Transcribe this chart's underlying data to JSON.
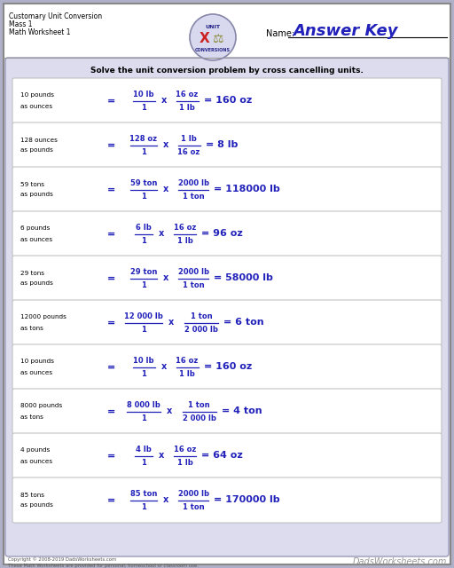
{
  "title_lines": [
    "Customary Unit Conversion",
    "Mass 1",
    "Math Worksheet 1"
  ],
  "answer_key_text": "Answer Key",
  "name_label": "Name:",
  "instruction": "Solve the unit conversion problem by cross cancelling units.",
  "blue_color": "#2222bb",
  "page_bg": "#b0b0c8",
  "white": "#ffffff",
  "box_border": "#aaaaaa",
  "outer_panel_bg": "#dcdcee",
  "outer_panel_border": "#9999bb",
  "problems": [
    {
      "line1": "10 pounds",
      "line2": "as ounces",
      "num1": "10 lb",
      "den1": "1",
      "num2": "16 oz",
      "den2": "1 lb",
      "result": "= 160 oz"
    },
    {
      "line1": "128 ounces",
      "line2": "as pounds",
      "num1": "128 oz",
      "den1": "1",
      "num2": "1 lb",
      "den2": "16 oz",
      "result": "= 8 lb"
    },
    {
      "line1": "59 tons",
      "line2": "as pounds",
      "num1": "59 ton",
      "den1": "1",
      "num2": "2000 lb",
      "den2": "1 ton",
      "result": "= 118000 lb"
    },
    {
      "line1": "6 pounds",
      "line2": "as ounces",
      "num1": "6 lb",
      "den1": "1",
      "num2": "16 oz",
      "den2": "1 lb",
      "result": "= 96 oz"
    },
    {
      "line1": "29 tons",
      "line2": "as pounds",
      "num1": "29 ton",
      "den1": "1",
      "num2": "2000 lb",
      "den2": "1 ton",
      "result": "= 58000 lb"
    },
    {
      "line1": "12000 pounds",
      "line2": "as tons",
      "num1": "12 000 lb",
      "den1": "1",
      "num2": "1 ton",
      "den2": "2 000 lb",
      "result": "= 6 ton"
    },
    {
      "line1": "10 pounds",
      "line2": "as ounces",
      "num1": "10 lb",
      "den1": "1",
      "num2": "16 oz",
      "den2": "1 lb",
      "result": "= 160 oz"
    },
    {
      "line1": "8000 pounds",
      "line2": "as tons",
      "num1": "8 000 lb",
      "den1": "1",
      "num2": "1 ton",
      "den2": "2 000 lb",
      "result": "= 4 ton"
    },
    {
      "line1": "4 pounds",
      "line2": "as ounces",
      "num1": "4 lb",
      "den1": "1",
      "num2": "16 oz",
      "den2": "1 lb",
      "result": "= 64 oz"
    },
    {
      "line1": "85 tons",
      "line2": "as pounds",
      "num1": "85 ton",
      "den1": "1",
      "num2": "2000 lb",
      "den2": "1 ton",
      "result": "= 170000 lb"
    }
  ],
  "footer_text": "Copyright © 2008-2019 DadsWorksheets.com",
  "footer_text2": "These Math Worksheets are provided for personal, homeschool or classroom use."
}
